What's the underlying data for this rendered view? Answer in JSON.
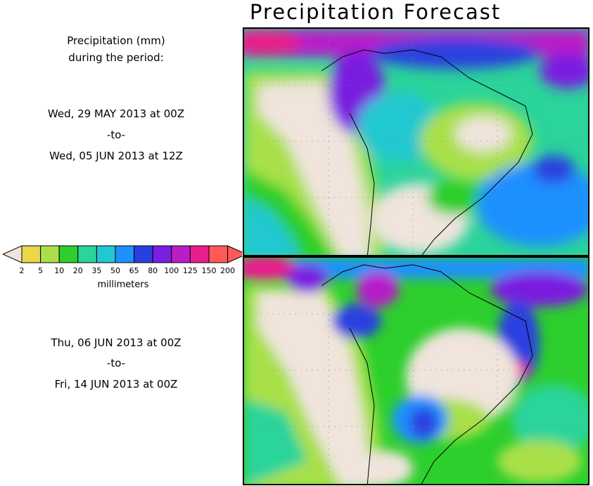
{
  "title": "Precipitation Forecast",
  "legend": {
    "heading_line1": "Precipitation (mm)",
    "heading_line2": "during the period:",
    "unit": "millimeters",
    "ticks": [
      "2",
      "5",
      "10",
      "20",
      "35",
      "50",
      "65",
      "80",
      "100",
      "125",
      "150",
      "200"
    ],
    "colors": [
      "#e8d84a",
      "#a9e04a",
      "#2ccf2c",
      "#2ad49a",
      "#20c8d0",
      "#1e90ff",
      "#2a3fe0",
      "#7a1ee0",
      "#b81ec8",
      "#e81e8c",
      "#ff5a5a"
    ],
    "left_arrow_color": "#f0e4dc",
    "right_arrow_color": "#ff5a5a"
  },
  "periods": [
    {
      "start": "Wed, 29 MAY 2013 at 00Z",
      "sep": "-to-",
      "end": "Wed, 05 JUN 2013 at 12Z"
    },
    {
      "start": "Thu, 06 JUN 2013 at 00Z",
      "sep": "-to-",
      "end": "Fri, 14 JUN 2013 at 00Z"
    }
  ]
}
